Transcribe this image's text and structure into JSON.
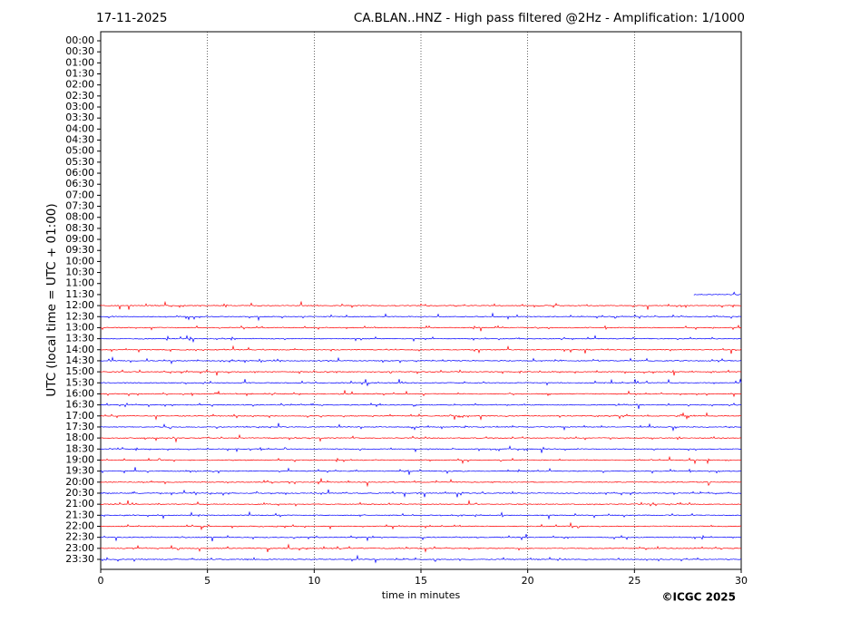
{
  "chart_data": {
    "type": "helicorder",
    "date": "17-11-2025",
    "title": "CA.BLAN..HNZ - High pass filtered @2Hz - Amplification: 1/1000",
    "xlabel": "time in minutes",
    "ylabel": "UTC (local time = UTC + 01:00)",
    "copyright": "©ICGC 2025",
    "xlim": [
      0,
      30
    ],
    "xticks": [
      0,
      5,
      10,
      15,
      20,
      25,
      30
    ],
    "grid": true,
    "rows": [
      "00:00",
      "00:30",
      "01:00",
      "01:30",
      "02:00",
      "02:30",
      "03:00",
      "03:30",
      "04:00",
      "04:30",
      "05:00",
      "05:30",
      "06:00",
      "06:30",
      "07:00",
      "07:30",
      "08:00",
      "08:30",
      "09:00",
      "09:30",
      "10:00",
      "10:30",
      "11:00",
      "11:30",
      "12:00",
      "12:30",
      "13:00",
      "13:30",
      "14:00",
      "14:30",
      "15:00",
      "15:30",
      "16:00",
      "16:30",
      "17:00",
      "17:30",
      "18:00",
      "18:30",
      "19:00",
      "19:30",
      "20:00",
      "20:30",
      "21:00",
      "21:30",
      "22:00",
      "22:30",
      "23:00",
      "23:30"
    ],
    "traces": [
      {
        "row": 23,
        "start": 27.8,
        "end": 30,
        "color": "#0000ff"
      },
      {
        "row": 24,
        "start": 0,
        "end": 30,
        "color": "#ff0000"
      },
      {
        "row": 25,
        "start": 0,
        "end": 30,
        "color": "#0000ff"
      },
      {
        "row": 26,
        "start": 0,
        "end": 30,
        "color": "#ff0000"
      },
      {
        "row": 27,
        "start": 0,
        "end": 30,
        "color": "#0000ff"
      },
      {
        "row": 28,
        "start": 0,
        "end": 30,
        "color": "#ff0000"
      },
      {
        "row": 29,
        "start": 0,
        "end": 30,
        "color": "#0000ff"
      },
      {
        "row": 30,
        "start": 0,
        "end": 30,
        "color": "#ff0000"
      },
      {
        "row": 31,
        "start": 0,
        "end": 30,
        "color": "#0000ff"
      },
      {
        "row": 32,
        "start": 0,
        "end": 30,
        "color": "#ff0000"
      },
      {
        "row": 33,
        "start": 0,
        "end": 30,
        "color": "#0000ff"
      },
      {
        "row": 34,
        "start": 0,
        "end": 30,
        "color": "#ff0000"
      },
      {
        "row": 35,
        "start": 0,
        "end": 30,
        "color": "#0000ff"
      },
      {
        "row": 36,
        "start": 0,
        "end": 30,
        "color": "#ff0000"
      },
      {
        "row": 37,
        "start": 0,
        "end": 30,
        "color": "#0000ff"
      },
      {
        "row": 38,
        "start": 0,
        "end": 30,
        "color": "#ff0000"
      },
      {
        "row": 39,
        "start": 0,
        "end": 30,
        "color": "#0000ff"
      },
      {
        "row": 40,
        "start": 0,
        "end": 30,
        "color": "#ff0000"
      },
      {
        "row": 41,
        "start": 0,
        "end": 30,
        "color": "#0000ff"
      },
      {
        "row": 42,
        "start": 0,
        "end": 30,
        "color": "#ff0000"
      },
      {
        "row": 43,
        "start": 0,
        "end": 30,
        "color": "#0000ff"
      },
      {
        "row": 44,
        "start": 0,
        "end": 30,
        "color": "#ff0000"
      },
      {
        "row": 45,
        "start": 0,
        "end": 30,
        "color": "#0000ff"
      },
      {
        "row": 46,
        "start": 0,
        "end": 30,
        "color": "#ff0000"
      },
      {
        "row": 47,
        "start": 0,
        "end": 30,
        "color": "#0000ff"
      }
    ]
  }
}
